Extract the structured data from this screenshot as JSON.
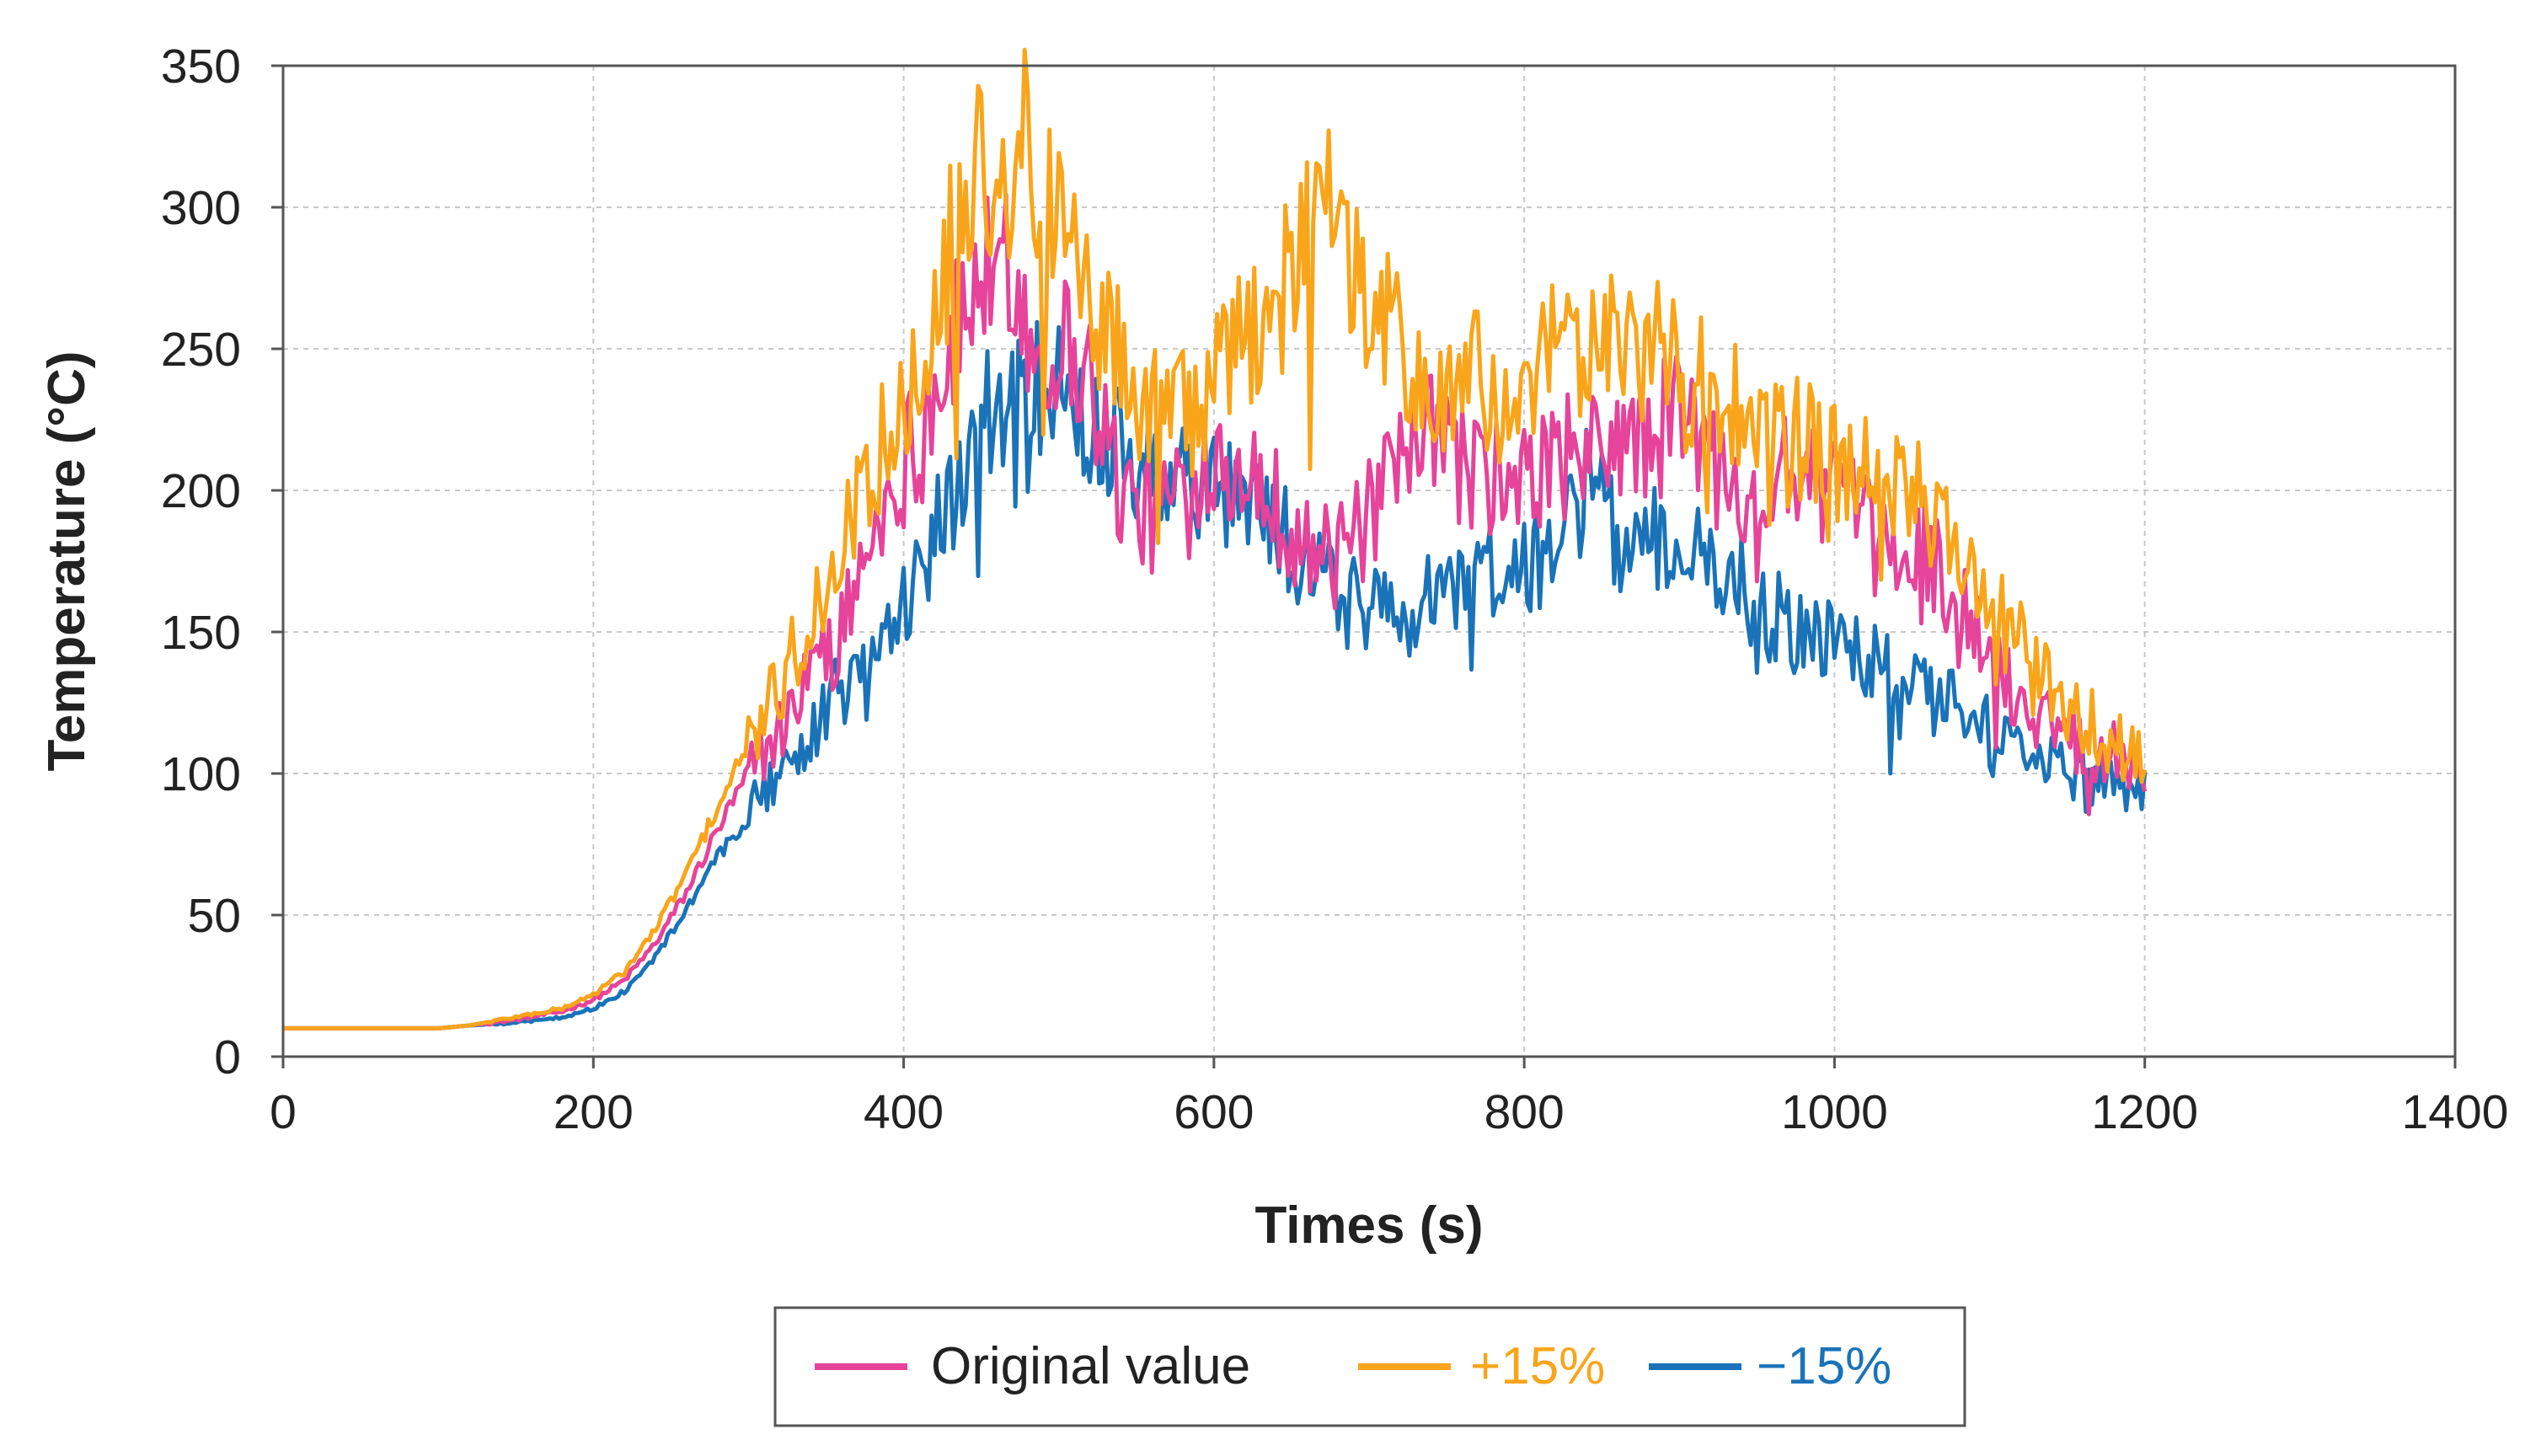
{
  "chart_data": {
    "type": "line",
    "title": "",
    "xlabel": "Times (s)",
    "ylabel": "Temperature (°C)",
    "xlim": [
      0,
      1400
    ],
    "ylim": [
      0,
      350
    ],
    "x_ticks": [
      0,
      200,
      400,
      600,
      800,
      1000,
      1200,
      1400
    ],
    "y_ticks": [
      0,
      50,
      100,
      150,
      200,
      250,
      300,
      350
    ],
    "x_tick_labels": [
      "0",
      "200",
      "400",
      "600",
      "800",
      "1000",
      "1200",
      "1400"
    ],
    "y_tick_labels": [
      "0",
      "50",
      "100",
      "150",
      "200",
      "250",
      "300",
      "350"
    ],
    "grid": true,
    "legend_position": "bottom-center",
    "series": [
      {
        "name": "Original value",
        "color": "#e6439a",
        "x": [
          0,
          50,
          100,
          120,
          150,
          180,
          200,
          220,
          240,
          260,
          280,
          300,
          320,
          340,
          360,
          380,
          400,
          420,
          440,
          450,
          460,
          470,
          480,
          490,
          500,
          520,
          540,
          560,
          580,
          600,
          620,
          640,
          660,
          680,
          700,
          720,
          740,
          760,
          780,
          800,
          820,
          840,
          860,
          880,
          900,
          920,
          940,
          960,
          980,
          1000,
          1020,
          1040,
          1060,
          1080,
          1100,
          1120,
          1140,
          1160,
          1180,
          1200
        ],
        "y": [
          10,
          10,
          10,
          11,
          13,
          16,
          20,
          27,
          40,
          58,
          80,
          100,
          115,
          135,
          150,
          185,
          210,
          235,
          262,
          280,
          265,
          285,
          255,
          245,
          255,
          240,
          200,
          190,
          205,
          215,
          210,
          195,
          180,
          175,
          190,
          205,
          220,
          210,
          205,
          200,
          215,
          210,
          220,
          215,
          230,
          210,
          205,
          200,
          210,
          200,
          185,
          175,
          180,
          160,
          140,
          125,
          120,
          110,
          108,
          103
        ]
      },
      {
        "name": "+15%",
        "color": "#f9a51b",
        "x": [
          0,
          50,
          100,
          120,
          150,
          180,
          200,
          220,
          240,
          260,
          280,
          300,
          320,
          340,
          360,
          380,
          400,
          420,
          440,
          450,
          460,
          470,
          480,
          490,
          500,
          520,
          540,
          560,
          580,
          600,
          620,
          640,
          660,
          670,
          680,
          700,
          720,
          740,
          760,
          780,
          800,
          820,
          840,
          860,
          880,
          900,
          920,
          940,
          960,
          980,
          1000,
          1020,
          1040,
          1060,
          1080,
          1100,
          1120,
          1140,
          1160,
          1180,
          1200
        ],
        "y": [
          10,
          10,
          10,
          11,
          14,
          17,
          22,
          30,
          45,
          65,
          88,
          110,
          130,
          155,
          180,
          210,
          235,
          270,
          300,
          325,
          305,
          315,
          330,
          295,
          300,
          270,
          245,
          230,
          225,
          235,
          255,
          270,
          285,
          300,
          290,
          265,
          250,
          230,
          240,
          235,
          225,
          250,
          245,
          260,
          250,
          240,
          235,
          225,
          220,
          215,
          210,
          205,
          200,
          195,
          180,
          160,
          145,
          130,
          120,
          110,
          105
        ]
      },
      {
        "name": "−15%",
        "color": "#1a73b8",
        "x": [
          0,
          50,
          100,
          120,
          150,
          180,
          200,
          220,
          240,
          260,
          280,
          300,
          320,
          340,
          360,
          380,
          400,
          420,
          440,
          450,
          460,
          470,
          480,
          490,
          500,
          520,
          540,
          560,
          580,
          600,
          620,
          640,
          660,
          680,
          700,
          720,
          740,
          760,
          780,
          800,
          820,
          840,
          860,
          880,
          900,
          920,
          940,
          960,
          980,
          1000,
          1020,
          1040,
          1060,
          1080,
          1100,
          1120,
          1140,
          1160,
          1180,
          1200
        ],
        "y": [
          10,
          10,
          10,
          11,
          12,
          14,
          17,
          23,
          35,
          52,
          70,
          85,
          100,
          115,
          130,
          145,
          160,
          185,
          210,
          235,
          220,
          250,
          230,
          240,
          235,
          225,
          215,
          210,
          200,
          205,
          200,
          185,
          175,
          165,
          160,
          155,
          160,
          170,
          175,
          170,
          185,
          200,
          185,
          180,
          185,
          175,
          165,
          155,
          150,
          145,
          140,
          135,
          130,
          125,
          115,
          108,
          102,
          97,
          95,
          93
        ]
      }
    ]
  }
}
